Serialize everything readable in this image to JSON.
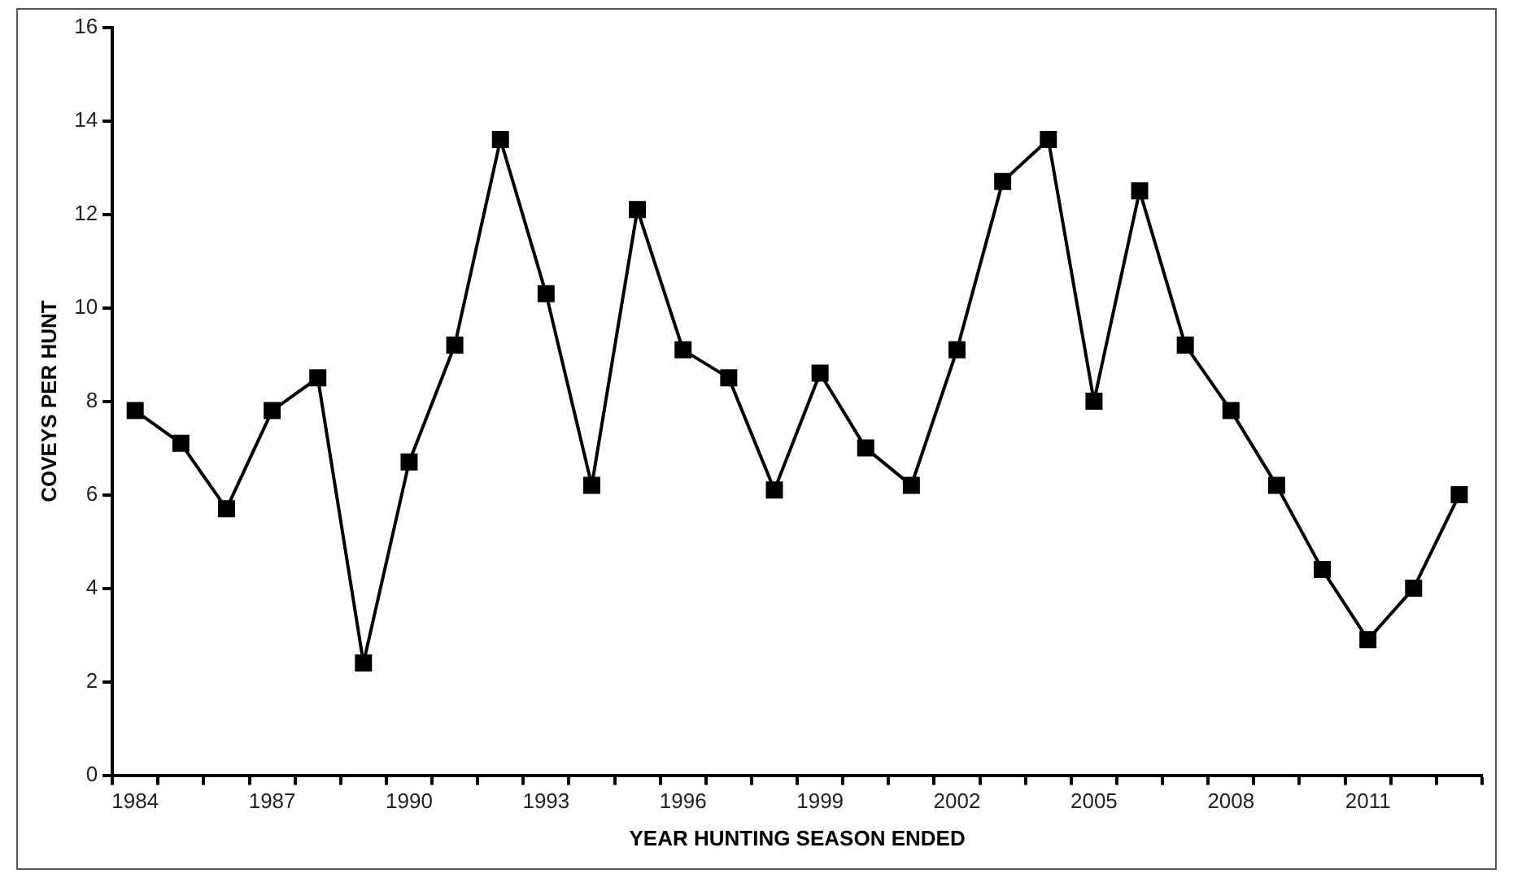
{
  "chart_data": {
    "type": "line",
    "xlabel": "YEAR HUNTING SEASON ENDED",
    "ylabel": "COVEYS PER HUNT",
    "categories": [
      "1984",
      null,
      null,
      "1987",
      null,
      null,
      "1990",
      null,
      null,
      "1993",
      null,
      null,
      "1996",
      null,
      null,
      "1999",
      null,
      null,
      "2002",
      null,
      null,
      "2005",
      null,
      null,
      "2008",
      null,
      null,
      "2011",
      null,
      null
    ],
    "series": [
      {
        "color": "#000000",
        "values": [
          7.8,
          7.1,
          5.7,
          7.8,
          8.5,
          2.4,
          6.7,
          9.2,
          13.6,
          10.3,
          6.2,
          12.1,
          9.1,
          8.5,
          6.1,
          8.6,
          7.0,
          6.2,
          9.1,
          12.7,
          13.6,
          8.0,
          12.5,
          9.2,
          7.8,
          6.2,
          4.4,
          2.9,
          4.0,
          6.0
        ]
      }
    ],
    "ylim": [
      0,
      16
    ],
    "yticks": [
      0,
      2,
      4,
      6,
      8,
      10,
      12,
      14,
      16
    ],
    "grid": false,
    "legend": false,
    "marker": "square",
    "line_style": "solid"
  }
}
